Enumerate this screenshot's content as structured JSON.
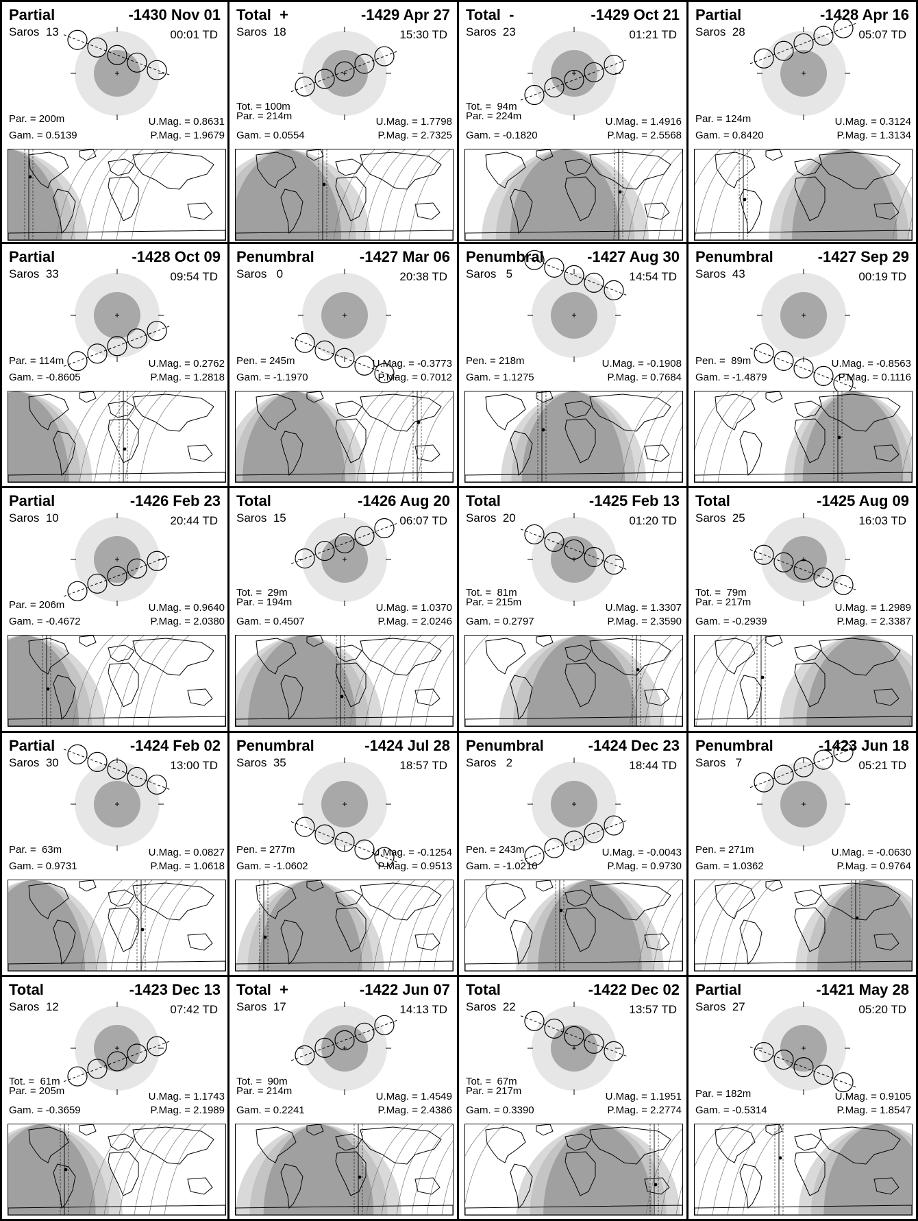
{
  "colors": {
    "umbra": "#a8a8a8",
    "penumbra": "#e6e6e6",
    "night": "#a0a0a0",
    "band": "#d9d9d9",
    "ink": "#000000"
  },
  "eclipses": [
    {
      "type": "Partial",
      "date": "-1430 Nov 01",
      "saros": "Saros  13",
      "time": "00:01 TD",
      "tot": "",
      "par": "Par. = 200m",
      "pen": "",
      "umag": "U.Mag. = 0.8631",
      "pmag": "P.Mag. = 1.9679",
      "gam": "Gam. = 0.5139"
    },
    {
      "type": "Total  +",
      "date": "-1429 Apr 27",
      "saros": "Saros  18",
      "time": "15:30 TD",
      "tot": "Tot. = 100m",
      "par": "Par. = 214m",
      "pen": "",
      "umag": "U.Mag. = 1.7798",
      "pmag": "P.Mag. = 2.7325",
      "gam": "Gam. = 0.0554"
    },
    {
      "type": "Total  -",
      "date": "-1429 Oct 21",
      "saros": "Saros  23",
      "time": "01:21 TD",
      "tot": "Tot. =  94m",
      "par": "Par. = 224m",
      "pen": "",
      "umag": "U.Mag. = 1.4916",
      "pmag": "P.Mag. = 2.5568",
      "gam": "Gam. = -0.1820"
    },
    {
      "type": "Partial",
      "date": "-1428 Apr 16",
      "saros": "Saros  28",
      "time": "05:07 TD",
      "tot": "",
      "par": "Par. = 124m",
      "pen": "",
      "umag": "U.Mag. = 0.3124",
      "pmag": "P.Mag. = 1.3134",
      "gam": "Gam. = 0.8420"
    },
    {
      "type": "Partial",
      "date": "-1428 Oct 09",
      "saros": "Saros  33",
      "time": "09:54 TD",
      "tot": "",
      "par": "Par. = 114m",
      "pen": "",
      "umag": "U.Mag. = 0.2762",
      "pmag": "P.Mag. = 1.2818",
      "gam": "Gam. = -0.8605"
    },
    {
      "type": "Penumbral",
      "date": "-1427 Mar 06",
      "saros": "Saros   0",
      "time": "20:38 TD",
      "tot": "",
      "par": "",
      "pen": "Pen. = 245m",
      "umag": "U.Mag. = -0.3773",
      "pmag": "P.Mag. = 0.7012",
      "gam": "Gam. = -1.1970"
    },
    {
      "type": "Penumbral",
      "date": "-1427 Aug 30",
      "saros": "Saros   5",
      "time": "14:54 TD",
      "tot": "",
      "par": "",
      "pen": "Pen. = 218m",
      "umag": "U.Mag. = -0.1908",
      "pmag": "P.Mag. = 0.7684",
      "gam": "Gam. = 1.1275"
    },
    {
      "type": "Penumbral",
      "date": "-1427 Sep 29",
      "saros": "Saros  43",
      "time": "00:19 TD",
      "tot": "",
      "par": "",
      "pen": "Pen. =  89m",
      "umag": "U.Mag. = -0.8563",
      "pmag": "P.Mag. = 0.1116",
      "gam": "Gam. = -1.4879"
    },
    {
      "type": "Partial",
      "date": "-1426 Feb 23",
      "saros": "Saros  10",
      "time": "20:44 TD",
      "tot": "",
      "par": "Par. = 206m",
      "pen": "",
      "umag": "U.Mag. = 0.9640",
      "pmag": "P.Mag. = 2.0380",
      "gam": "Gam. = -0.4672"
    },
    {
      "type": "Total",
      "date": "-1426 Aug 20",
      "saros": "Saros  15",
      "time": "06:07 TD",
      "tot": "Tot. =  29m",
      "par": "Par. = 194m",
      "pen": "",
      "umag": "U.Mag. = 1.0370",
      "pmag": "P.Mag. = 2.0246",
      "gam": "Gam. = 0.4507"
    },
    {
      "type": "Total",
      "date": "-1425 Feb 13",
      "saros": "Saros  20",
      "time": "01:20 TD",
      "tot": "Tot. =  81m",
      "par": "Par. = 215m",
      "pen": "",
      "umag": "U.Mag. = 1.3307",
      "pmag": "P.Mag. = 2.3590",
      "gam": "Gam. = 0.2797"
    },
    {
      "type": "Total",
      "date": "-1425 Aug 09",
      "saros": "Saros  25",
      "time": "16:03 TD",
      "tot": "Tot. =  79m",
      "par": "Par. = 217m",
      "pen": "",
      "umag": "U.Mag. = 1.2989",
      "pmag": "P.Mag. = 2.3387",
      "gam": "Gam. = -0.2939"
    },
    {
      "type": "Partial",
      "date": "-1424 Feb 02",
      "saros": "Saros  30",
      "time": "13:00 TD",
      "tot": "",
      "par": "Par. =  63m",
      "pen": "",
      "umag": "U.Mag. = 0.0827",
      "pmag": "P.Mag. = 1.0618",
      "gam": "Gam. = 0.9731"
    },
    {
      "type": "Penumbral",
      "date": "-1424 Jul 28",
      "saros": "Saros  35",
      "time": "18:57 TD",
      "tot": "",
      "par": "",
      "pen": "Pen. = 277m",
      "umag": "U.Mag. = -0.1254",
      "pmag": "P.Mag. = 0.9513",
      "gam": "Gam. = -1.0602"
    },
    {
      "type": "Penumbral",
      "date": "-1424 Dec 23",
      "saros": "Saros   2",
      "time": "18:44 TD",
      "tot": "",
      "par": "",
      "pen": "Pen. = 243m",
      "umag": "U.Mag. = -0.0043",
      "pmag": "P.Mag. = 0.9730",
      "gam": "Gam. = -1.0210"
    },
    {
      "type": "Penumbral",
      "date": "-1423 Jun 18",
      "saros": "Saros   7",
      "time": "05:21 TD",
      "tot": "",
      "par": "",
      "pen": "Pen. = 271m",
      "umag": "U.Mag. = -0.0630",
      "pmag": "P.Mag. = 0.9764",
      "gam": "Gam. = 1.0362"
    },
    {
      "type": "Total",
      "date": "-1423 Dec 13",
      "saros": "Saros  12",
      "time": "07:42 TD",
      "tot": "Tot. =  61m",
      "par": "Par. = 205m",
      "pen": "",
      "umag": "U.Mag. = 1.1743",
      "pmag": "P.Mag. = 2.1989",
      "gam": "Gam. = -0.3659"
    },
    {
      "type": "Total  +",
      "date": "-1422 Jun 07",
      "saros": "Saros  17",
      "time": "14:13 TD",
      "tot": "Tot. =  90m",
      "par": "Par. = 214m",
      "pen": "",
      "umag": "U.Mag. = 1.4549",
      "pmag": "P.Mag. = 2.4386",
      "gam": "Gam. = 0.2241"
    },
    {
      "type": "Total",
      "date": "-1422 Dec 02",
      "saros": "Saros  22",
      "time": "13:57 TD",
      "tot": "Tot. =  67m",
      "par": "Par. = 217m",
      "pen": "",
      "umag": "U.Mag. = 1.1951",
      "pmag": "P.Mag. = 2.2774",
      "gam": "Gam. = 0.3390"
    },
    {
      "type": "Partial",
      "date": "-1421 May 28",
      "saros": "Saros  27",
      "time": "05:20 TD",
      "tot": "",
      "par": "Par. = 182m",
      "pen": "",
      "umag": "U.Mag. = 0.9105",
      "pmag": "P.Mag. = 1.8547",
      "gam": "Gam. = -0.5314"
    }
  ]
}
